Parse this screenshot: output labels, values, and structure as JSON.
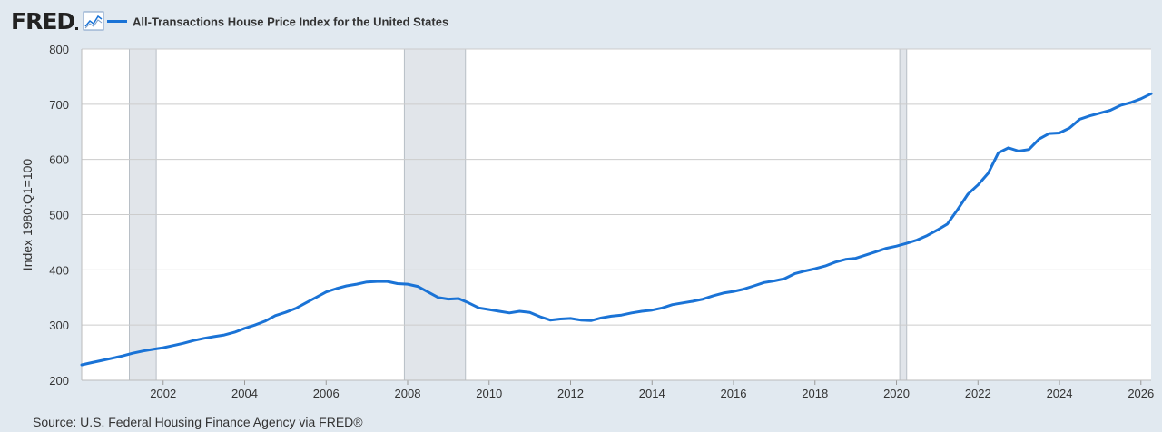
{
  "header": {
    "logo_text": "FRED",
    "logo_icon": "line-chart-icon"
  },
  "colors": {
    "series": "#1a73d6",
    "recession": "#e1e5ea",
    "grid": "#cccccc",
    "background": "#e1e9f0",
    "plot": "#ffffff"
  },
  "chart_data": {
    "type": "line",
    "title": "",
    "legend": "top-left",
    "ylabel": "Index 1980:Q1=100",
    "xlabel": "",
    "ylim": [
      200,
      800
    ],
    "xlim": [
      2000.0,
      2026.25
    ],
    "yticks": [
      "800",
      "700",
      "600",
      "500",
      "400",
      "300",
      "200"
    ],
    "xticks": [
      "2002",
      "2004",
      "2006",
      "2008",
      "2010",
      "2012",
      "2014",
      "2016",
      "2018",
      "2020",
      "2022",
      "2024",
      "2026"
    ],
    "grid": "horizontal",
    "recessions": [
      [
        2001.17,
        2001.83
      ],
      [
        2007.92,
        2009.42
      ],
      [
        2020.08,
        2020.25
      ]
    ],
    "series": [
      {
        "name": "All-Transactions House Price Index for the United States",
        "points": [
          [
            2000.0,
            228
          ],
          [
            2000.25,
            232
          ],
          [
            2000.5,
            236
          ],
          [
            2000.75,
            240
          ],
          [
            2001.0,
            244
          ],
          [
            2001.25,
            249
          ],
          [
            2001.5,
            253
          ],
          [
            2001.75,
            256
          ],
          [
            2002.0,
            259
          ],
          [
            2002.25,
            263
          ],
          [
            2002.5,
            267
          ],
          [
            2002.75,
            272
          ],
          [
            2003.0,
            276
          ],
          [
            2003.25,
            279
          ],
          [
            2003.5,
            282
          ],
          [
            2003.75,
            287
          ],
          [
            2004.0,
            294
          ],
          [
            2004.25,
            300
          ],
          [
            2004.5,
            307
          ],
          [
            2004.75,
            317
          ],
          [
            2005.0,
            323
          ],
          [
            2005.25,
            330
          ],
          [
            2005.5,
            340
          ],
          [
            2005.75,
            350
          ],
          [
            2006.0,
            360
          ],
          [
            2006.25,
            366
          ],
          [
            2006.5,
            371
          ],
          [
            2006.75,
            374
          ],
          [
            2007.0,
            378
          ],
          [
            2007.25,
            379
          ],
          [
            2007.5,
            379
          ],
          [
            2007.75,
            375
          ],
          [
            2008.0,
            374
          ],
          [
            2008.25,
            370
          ],
          [
            2008.5,
            360
          ],
          [
            2008.75,
            350
          ],
          [
            2009.0,
            347
          ],
          [
            2009.25,
            348
          ],
          [
            2009.5,
            340
          ],
          [
            2009.75,
            331
          ],
          [
            2010.0,
            328
          ],
          [
            2010.25,
            325
          ],
          [
            2010.5,
            322
          ],
          [
            2010.75,
            325
          ],
          [
            2011.0,
            323
          ],
          [
            2011.25,
            315
          ],
          [
            2011.5,
            309
          ],
          [
            2011.75,
            311
          ],
          [
            2012.0,
            312
          ],
          [
            2012.25,
            309
          ],
          [
            2012.5,
            308
          ],
          [
            2012.75,
            313
          ],
          [
            2013.0,
            316
          ],
          [
            2013.25,
            318
          ],
          [
            2013.5,
            322
          ],
          [
            2013.75,
            325
          ],
          [
            2014.0,
            327
          ],
          [
            2014.25,
            331
          ],
          [
            2014.5,
            337
          ],
          [
            2014.75,
            340
          ],
          [
            2015.0,
            343
          ],
          [
            2015.25,
            347
          ],
          [
            2015.5,
            353
          ],
          [
            2015.75,
            358
          ],
          [
            2016.0,
            361
          ],
          [
            2016.25,
            365
          ],
          [
            2016.5,
            371
          ],
          [
            2016.75,
            377
          ],
          [
            2017.0,
            380
          ],
          [
            2017.25,
            384
          ],
          [
            2017.5,
            393
          ],
          [
            2017.75,
            398
          ],
          [
            2018.0,
            402
          ],
          [
            2018.25,
            407
          ],
          [
            2018.5,
            414
          ],
          [
            2018.75,
            419
          ],
          [
            2019.0,
            421
          ],
          [
            2019.25,
            427
          ],
          [
            2019.5,
            433
          ],
          [
            2019.75,
            439
          ],
          [
            2020.0,
            443
          ],
          [
            2020.25,
            448
          ],
          [
            2020.5,
            454
          ],
          [
            2020.75,
            462
          ],
          [
            2021.0,
            472
          ],
          [
            2021.25,
            483
          ],
          [
            2021.5,
            509
          ],
          [
            2021.75,
            537
          ],
          [
            2022.0,
            554
          ],
          [
            2022.25,
            575
          ],
          [
            2022.5,
            612
          ],
          [
            2022.75,
            621
          ],
          [
            2023.0,
            615
          ],
          [
            2023.25,
            618
          ],
          [
            2023.5,
            637
          ],
          [
            2023.75,
            647
          ],
          [
            2024.0,
            648
          ],
          [
            2024.25,
            657
          ],
          [
            2024.5,
            673
          ],
          [
            2024.75,
            679
          ],
          [
            2025.0,
            684
          ],
          [
            2025.25,
            689
          ],
          [
            2025.5,
            698
          ],
          [
            2025.75,
            703
          ],
          [
            2026.0,
            710
          ],
          [
            2026.25,
            719
          ]
        ]
      }
    ]
  },
  "source": "Source: U.S. Federal Housing Finance Agency via FRED®"
}
